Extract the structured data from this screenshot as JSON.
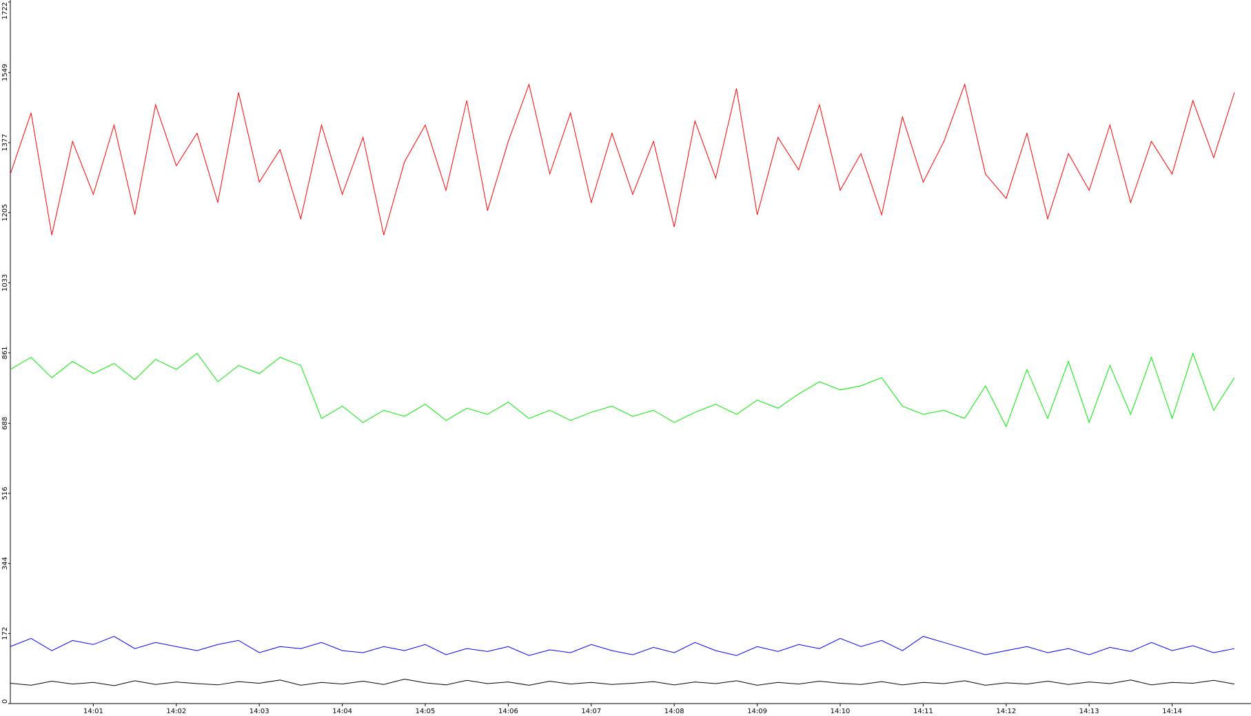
{
  "chart_data": {
    "type": "line",
    "x": [
      0,
      0.25,
      0.5,
      0.75,
      1,
      1.25,
      1.5,
      1.75,
      2,
      2.25,
      2.5,
      2.75,
      3,
      3.25,
      3.5,
      3.75,
      4,
      4.25,
      4.5,
      4.75,
      5,
      5.25,
      5.5,
      5.75,
      6,
      6.25,
      6.5,
      6.75,
      7,
      7.25,
      7.5,
      7.75,
      8,
      8.25,
      8.5,
      8.75,
      9,
      9.25,
      9.5,
      9.75,
      10,
      10.25,
      10.5,
      10.75,
      11,
      11.25,
      11.5,
      11.75,
      12,
      12.25,
      12.5,
      12.75,
      13,
      13.25,
      13.5,
      13.75,
      14,
      14.25,
      14.5,
      14.75
    ],
    "series": [
      {
        "color": "#ff0000",
        "values": [
          1300,
          1450,
          1150,
          1380,
          1250,
          1420,
          1200,
          1470,
          1320,
          1400,
          1230,
          1500,
          1280,
          1360,
          1190,
          1420,
          1250,
          1390,
          1150,
          1330,
          1420,
          1260,
          1480,
          1210,
          1380,
          1520,
          1300,
          1450,
          1230,
          1400,
          1250,
          1380,
          1170,
          1430,
          1290,
          1510,
          1200,
          1390,
          1310,
          1470,
          1260,
          1350,
          1200,
          1440,
          1280,
          1380,
          1520,
          1300,
          1240,
          1400,
          1190,
          1350,
          1260,
          1420,
          1230,
          1380,
          1300,
          1480,
          1340,
          1500
        ]
      },
      {
        "color": "#00ee00",
        "values": [
          820,
          850,
          800,
          840,
          810,
          835,
          795,
          845,
          820,
          860,
          790,
          830,
          810,
          850,
          830,
          700,
          730,
          690,
          720,
          705,
          735,
          695,
          725,
          710,
          740,
          700,
          720,
          695,
          715,
          730,
          705,
          720,
          690,
          715,
          735,
          710,
          745,
          725,
          760,
          790,
          770,
          780,
          800,
          730,
          710,
          720,
          700,
          780,
          680,
          820,
          700,
          840,
          690,
          830,
          710,
          850,
          700,
          860,
          720,
          800
        ]
      },
      {
        "color": "#0000ff",
        "values": [
          140,
          160,
          130,
          155,
          145,
          165,
          135,
          150,
          140,
          130,
          145,
          155,
          125,
          140,
          135,
          150,
          130,
          125,
          140,
          130,
          145,
          120,
          135,
          128,
          140,
          118,
          132,
          125,
          145,
          130,
          120,
          138,
          125,
          150,
          130,
          118,
          140,
          128,
          145,
          135,
          160,
          140,
          155,
          130,
          165,
          150,
          135,
          120,
          130,
          140,
          125,
          135,
          120,
          138,
          128,
          150,
          130,
          142,
          125,
          135
        ]
      },
      {
        "color": "#000000",
        "values": [
          50,
          45,
          55,
          48,
          52,
          44,
          56,
          47,
          53,
          49,
          46,
          54,
          50,
          58,
          45,
          52,
          48,
          55,
          47,
          60,
          51,
          46,
          57,
          49,
          53,
          45,
          55,
          48,
          52,
          47,
          50,
          54,
          46,
          53,
          49,
          56,
          45,
          52,
          48,
          55,
          50,
          47,
          54,
          46,
          52,
          49,
          56,
          45,
          51,
          48,
          55,
          47,
          53,
          49,
          58,
          46,
          52,
          50,
          57,
          48
        ]
      }
    ],
    "xlim": [
      0,
      14.95
    ],
    "xticks": [
      {
        "value": 1,
        "label": "14:01"
      },
      {
        "value": 2,
        "label": "14:02"
      },
      {
        "value": 3,
        "label": "14:03"
      },
      {
        "value": 4,
        "label": "14:04"
      },
      {
        "value": 5,
        "label": "14:05"
      },
      {
        "value": 6,
        "label": "14:06"
      },
      {
        "value": 7,
        "label": "14:07"
      },
      {
        "value": 8,
        "label": "14:08"
      },
      {
        "value": 9,
        "label": "14:09"
      },
      {
        "value": 10,
        "label": "14:10"
      },
      {
        "value": 11,
        "label": "14:11"
      },
      {
        "value": 12,
        "label": "14:12"
      },
      {
        "value": 13,
        "label": "14:13"
      },
      {
        "value": 14,
        "label": "14:14"
      }
    ],
    "ylim": [
      0,
      1722
    ],
    "yticks": [
      0,
      172,
      344,
      516,
      688,
      861,
      1033,
      1205,
      1377,
      1549,
      1722
    ]
  }
}
